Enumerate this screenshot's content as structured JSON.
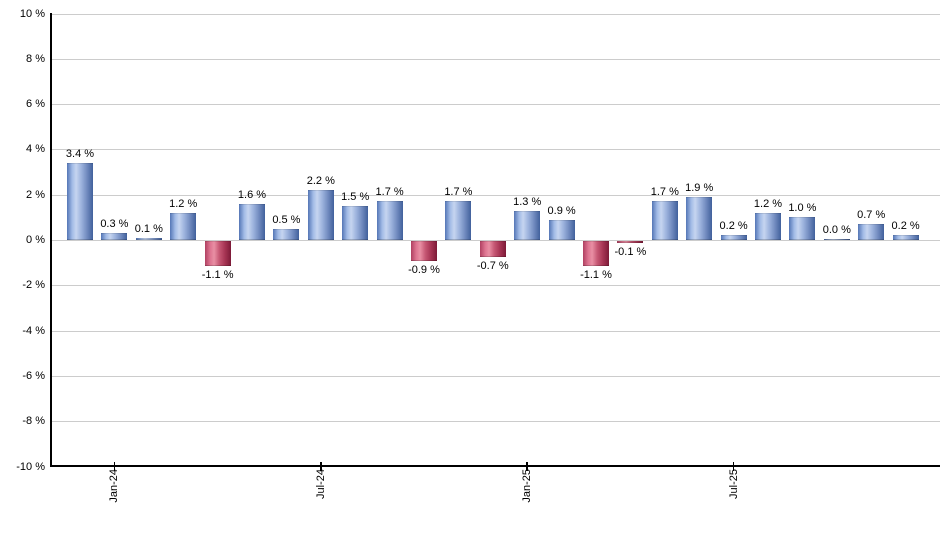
{
  "chart_data": {
    "type": "bar",
    "title": "",
    "xlabel": "",
    "ylabel": "",
    "ylim": [
      -10,
      10
    ],
    "grid": true,
    "legend": "none",
    "y_ticks": [
      {
        "v": 10,
        "label": "10 %"
      },
      {
        "v": 8,
        "label": "8 %"
      },
      {
        "v": 6,
        "label": "6 %"
      },
      {
        "v": 4,
        "label": "4 %"
      },
      {
        "v": 2,
        "label": "2 %"
      },
      {
        "v": 0,
        "label": "0 %"
      },
      {
        "v": -2,
        "label": "-2 %"
      },
      {
        "v": -4,
        "label": "-4 %"
      },
      {
        "v": -6,
        "label": "-6 %"
      },
      {
        "v": -8,
        "label": "-8 %"
      },
      {
        "v": -10,
        "label": "-10 %"
      }
    ],
    "bars": [
      {
        "value": 3.4,
        "label": "3.4 %"
      },
      {
        "value": 0.3,
        "label": "0.3 %"
      },
      {
        "value": 0.1,
        "label": "0.1 %"
      },
      {
        "value": 1.2,
        "label": "1.2 %"
      },
      {
        "value": -1.1,
        "label": "-1.1 %"
      },
      {
        "value": 1.6,
        "label": "1.6 %"
      },
      {
        "value": 0.5,
        "label": "0.5 %"
      },
      {
        "value": 2.2,
        "label": "2.2 %"
      },
      {
        "value": 1.5,
        "label": "1.5 %"
      },
      {
        "value": 1.7,
        "label": "1.7 %"
      },
      {
        "value": -0.9,
        "label": "-0.9 %"
      },
      {
        "value": 1.7,
        "label": "1.7 %"
      },
      {
        "value": -0.7,
        "label": "-0.7 %"
      },
      {
        "value": 1.3,
        "label": "1.3 %"
      },
      {
        "value": 0.9,
        "label": "0.9 %"
      },
      {
        "value": -1.1,
        "label": "-1.1 %"
      },
      {
        "value": -0.1,
        "label": "-0.1 %"
      },
      {
        "value": 1.7,
        "label": "1.7 %"
      },
      {
        "value": 1.9,
        "label": "1.9 %"
      },
      {
        "value": 0.2,
        "label": "0.2 %"
      },
      {
        "value": 1.2,
        "label": "1.2 %"
      },
      {
        "value": 1.0,
        "label": "1.0 %"
      },
      {
        "value": 0.0,
        "label": "0.0 %"
      },
      {
        "value": 0.7,
        "label": "0.7 %"
      },
      {
        "value": 0.2,
        "label": "0.2 %"
      }
    ],
    "x_ticks": [
      {
        "index": 1,
        "label": "Jan-24"
      },
      {
        "index": 7,
        "label": "Jul-24"
      },
      {
        "index": 13,
        "label": "Jan-25"
      },
      {
        "index": 19,
        "label": "Jul-25"
      }
    ],
    "colors": {
      "gridline": "#cccccc",
      "axis": "#000000",
      "text": "#000000",
      "positive_stops": [
        [
          "#5476b6",
          "0%"
        ],
        [
          "#a2bbe6",
          "20%"
        ],
        [
          "#c6d5f0",
          "35%"
        ],
        [
          "#9db3dd",
          "55%"
        ],
        [
          "#7b94c6",
          "72%"
        ],
        [
          "#41609c",
          "100%"
        ]
      ],
      "negative_stops": [
        [
          "#b04061",
          "0%"
        ],
        [
          "#dd7490",
          "20%"
        ],
        [
          "#e98fa4",
          "35%"
        ],
        [
          "#c65874",
          "55%"
        ],
        [
          "#a93756",
          "75%"
        ],
        [
          "#7d1a37",
          "100%"
        ]
      ]
    }
  }
}
